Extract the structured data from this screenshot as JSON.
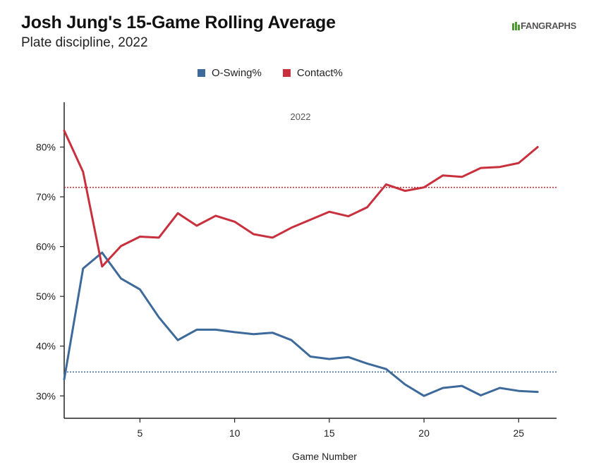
{
  "header": {
    "title": "Josh Jung's 15-Game Rolling Average",
    "subtitle": "Plate discipline, 2022",
    "logo_text_fan": "FAN",
    "logo_text_graphs": "GRAPHS"
  },
  "colors": {
    "o_swing": "#3d6a9a",
    "contact": "#c8303d",
    "axis": "#222222",
    "logo_green": "#4e9a2f"
  },
  "chart_data": {
    "type": "line",
    "facet_label": "2022",
    "xlabel": "Game Number",
    "ylabel": "",
    "xlim": [
      1,
      27
    ],
    "ylim": [
      25.5,
      89
    ],
    "x_ticks": [
      5,
      10,
      15,
      20,
      25
    ],
    "y_ticks": [
      30,
      40,
      50,
      60,
      70,
      80
    ],
    "y_tick_labels": [
      "30%",
      "40%",
      "50%",
      "60%",
      "70%",
      "80%"
    ],
    "legend_position": "top",
    "x": [
      1,
      2,
      3,
      4,
      5,
      6,
      7,
      8,
      9,
      10,
      11,
      12,
      13,
      14,
      15,
      16,
      17,
      18,
      19,
      20,
      21,
      22,
      23,
      24,
      25,
      26
    ],
    "series": [
      {
        "name": "O-Swing%",
        "color_key": "o_swing",
        "values": [
          33.3,
          55.6,
          58.8,
          53.6,
          51.4,
          45.8,
          41.2,
          43.3,
          43.3,
          42.8,
          42.4,
          42.7,
          41.2,
          37.9,
          37.4,
          37.8,
          36.5,
          35.4,
          32.3,
          30.0,
          31.6,
          32.0,
          30.1,
          31.6,
          31.0,
          30.8
        ],
        "reference_line": 34.8
      },
      {
        "name": "Contact%",
        "color_key": "contact",
        "values": [
          83.3,
          75.0,
          56.0,
          60.1,
          62.0,
          61.8,
          66.7,
          64.2,
          66.2,
          65.0,
          62.5,
          61.8,
          63.8,
          65.4,
          67.0,
          66.1,
          67.9,
          72.5,
          71.2,
          71.9,
          74.3,
          74.0,
          75.8,
          76.0,
          76.8,
          80.0
        ],
        "reference_line": 71.9
      }
    ]
  }
}
